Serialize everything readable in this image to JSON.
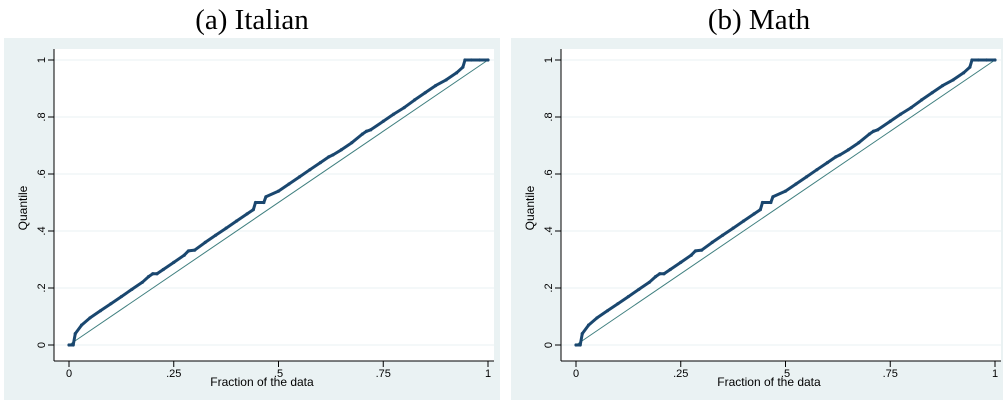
{
  "chart_data": [
    {
      "type": "scatter",
      "title": "(a) Italian",
      "xlabel": "Fraction of the data",
      "ylabel": "Quantile",
      "xlim": [
        0,
        1
      ],
      "ylim": [
        0,
        1
      ],
      "xticks": [
        0,
        0.25,
        0.5,
        0.75,
        1
      ],
      "xtick_labels": [
        "0",
        ".25",
        ".5",
        ".75",
        "1"
      ],
      "yticks": [
        0,
        0.2,
        0.4,
        0.6,
        0.8,
        1
      ],
      "ytick_labels": [
        "0",
        ".2",
        ".4",
        ".6",
        ".8",
        "1"
      ],
      "grid": "horizontal",
      "reference_line": {
        "x": [
          0,
          1
        ],
        "y": [
          0,
          1
        ],
        "color": "#3f7f7f"
      },
      "series": [
        {
          "color": "#1a476f",
          "points": [
            [
              0,
              0
            ],
            [
              0.01,
              0
            ],
            [
              0.015,
              0.04
            ],
            [
              0.03,
              0.07
            ],
            [
              0.05,
              0.095
            ],
            [
              0.075,
              0.12
            ],
            [
              0.1,
              0.145
            ],
            [
              0.125,
              0.17
            ],
            [
              0.15,
              0.195
            ],
            [
              0.175,
              0.22
            ],
            [
              0.19,
              0.24
            ],
            [
              0.2,
              0.25
            ],
            [
              0.21,
              0.25
            ],
            [
              0.225,
              0.265
            ],
            [
              0.25,
              0.29
            ],
            [
              0.275,
              0.315
            ],
            [
              0.285,
              0.33
            ],
            [
              0.3,
              0.333
            ],
            [
              0.325,
              0.36
            ],
            [
              0.35,
              0.385
            ],
            [
              0.375,
              0.41
            ],
            [
              0.4,
              0.435
            ],
            [
              0.425,
              0.46
            ],
            [
              0.44,
              0.475
            ],
            [
              0.445,
              0.5
            ],
            [
              0.465,
              0.5
            ],
            [
              0.47,
              0.52
            ],
            [
              0.5,
              0.54
            ],
            [
              0.525,
              0.565
            ],
            [
              0.55,
              0.59
            ],
            [
              0.575,
              0.615
            ],
            [
              0.6,
              0.64
            ],
            [
              0.62,
              0.66
            ],
            [
              0.63,
              0.667
            ],
            [
              0.65,
              0.685
            ],
            [
              0.675,
              0.71
            ],
            [
              0.7,
              0.74
            ],
            [
              0.71,
              0.75
            ],
            [
              0.72,
              0.755
            ],
            [
              0.75,
              0.785
            ],
            [
              0.775,
              0.81
            ],
            [
              0.8,
              0.833
            ],
            [
              0.825,
              0.86
            ],
            [
              0.85,
              0.885
            ],
            [
              0.875,
              0.91
            ],
            [
              0.9,
              0.93
            ],
            [
              0.925,
              0.955
            ],
            [
              0.94,
              0.975
            ],
            [
              0.945,
              1
            ],
            [
              0.96,
              1
            ],
            [
              0.98,
              1
            ],
            [
              1,
              1
            ]
          ]
        }
      ]
    },
    {
      "type": "scatter",
      "title": "(b) Math",
      "xlabel": "Fraction of the data",
      "ylabel": "Quantile",
      "xlim": [
        0,
        1
      ],
      "ylim": [
        0,
        1
      ],
      "xticks": [
        0,
        0.25,
        0.5,
        0.75,
        1
      ],
      "xtick_labels": [
        "0",
        ".25",
        ".5",
        ".75",
        "1"
      ],
      "yticks": [
        0,
        0.2,
        0.4,
        0.6,
        0.8,
        1
      ],
      "ytick_labels": [
        "0",
        ".2",
        ".4",
        ".6",
        ".8",
        "1"
      ],
      "grid": "horizontal",
      "reference_line": {
        "x": [
          0,
          1
        ],
        "y": [
          0,
          1
        ],
        "color": "#3f7f7f"
      },
      "series": [
        {
          "color": "#1a476f",
          "points": [
            [
              0,
              0
            ],
            [
              0.01,
              0
            ],
            [
              0.015,
              0.04
            ],
            [
              0.03,
              0.07
            ],
            [
              0.05,
              0.095
            ],
            [
              0.075,
              0.12
            ],
            [
              0.1,
              0.145
            ],
            [
              0.125,
              0.17
            ],
            [
              0.15,
              0.195
            ],
            [
              0.175,
              0.22
            ],
            [
              0.19,
              0.24
            ],
            [
              0.2,
              0.25
            ],
            [
              0.21,
              0.25
            ],
            [
              0.225,
              0.265
            ],
            [
              0.25,
              0.29
            ],
            [
              0.275,
              0.315
            ],
            [
              0.285,
              0.33
            ],
            [
              0.3,
              0.333
            ],
            [
              0.325,
              0.36
            ],
            [
              0.35,
              0.385
            ],
            [
              0.375,
              0.41
            ],
            [
              0.4,
              0.435
            ],
            [
              0.425,
              0.46
            ],
            [
              0.44,
              0.475
            ],
            [
              0.445,
              0.5
            ],
            [
              0.465,
              0.5
            ],
            [
              0.47,
              0.52
            ],
            [
              0.5,
              0.54
            ],
            [
              0.525,
              0.565
            ],
            [
              0.55,
              0.59
            ],
            [
              0.575,
              0.615
            ],
            [
              0.6,
              0.64
            ],
            [
              0.62,
              0.66
            ],
            [
              0.63,
              0.667
            ],
            [
              0.65,
              0.685
            ],
            [
              0.675,
              0.71
            ],
            [
              0.7,
              0.74
            ],
            [
              0.71,
              0.75
            ],
            [
              0.72,
              0.755
            ],
            [
              0.75,
              0.785
            ],
            [
              0.775,
              0.81
            ],
            [
              0.8,
              0.833
            ],
            [
              0.825,
              0.86
            ],
            [
              0.85,
              0.885
            ],
            [
              0.875,
              0.91
            ],
            [
              0.9,
              0.93
            ],
            [
              0.925,
              0.955
            ],
            [
              0.94,
              0.975
            ],
            [
              0.945,
              1
            ],
            [
              0.96,
              1
            ],
            [
              0.98,
              1
            ],
            [
              1,
              1
            ]
          ]
        }
      ]
    }
  ]
}
